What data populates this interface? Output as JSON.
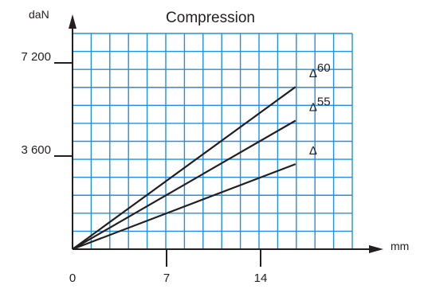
{
  "chart_data": {
    "type": "line",
    "title": "Compression",
    "xlabel": "mm",
    "ylabel": "daN",
    "xlim": [
      0,
      21
    ],
    "ylim": [
      0,
      8640
    ],
    "x_ticks": [
      {
        "value": 0,
        "label": "0"
      },
      {
        "value": 7,
        "label": "7"
      },
      {
        "value": 14,
        "label": "14"
      }
    ],
    "y_ticks": [
      {
        "value": 3600,
        "label": "3 600"
      },
      {
        "value": 7200,
        "label": "7 200"
      }
    ],
    "grid": true,
    "grid_color": "#1e90e6",
    "line_color": "#231f20",
    "series": [
      {
        "name": "60",
        "label_prefix": "Δ",
        "x": [
          0,
          16.6
        ],
        "y": [
          0,
          6270
        ]
      },
      {
        "name": "55",
        "label_prefix": "Δ",
        "x": [
          0,
          16.6
        ],
        "y": [
          0,
          4970
        ]
      },
      {
        "name": "",
        "label_prefix": "Δ",
        "x": [
          0,
          16.6
        ],
        "y": [
          0,
          3290
        ]
      }
    ]
  }
}
